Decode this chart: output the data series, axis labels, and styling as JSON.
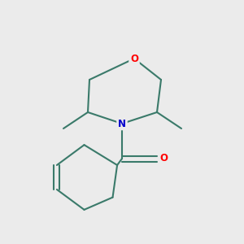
{
  "background_color": "#ebebeb",
  "bond_color": "#3a7a6a",
  "bond_width": 1.5,
  "atom_colors": {
    "O": "#ff0000",
    "N": "#0000cc",
    "C": "#1a5a4a"
  },
  "font_size_atom": 8.5,
  "figsize": [
    3.0,
    3.0
  ],
  "dpi": 100
}
